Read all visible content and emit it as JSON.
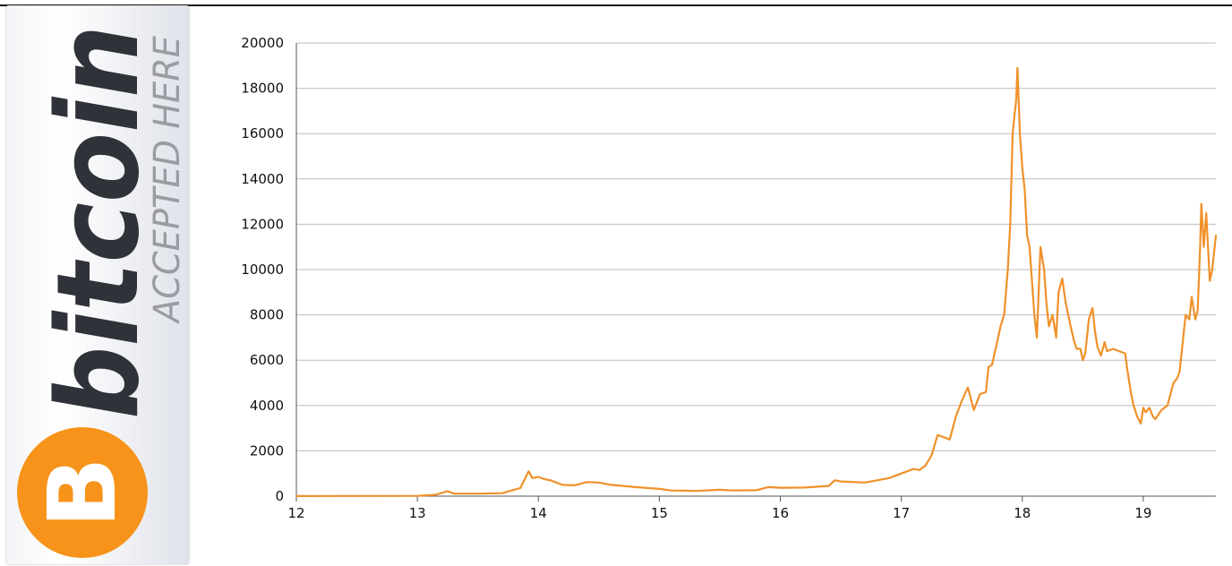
{
  "logo": {
    "wordmark": "bitcoin",
    "tagline": "ACCEPTED HERE",
    "symbol": "B",
    "icon": "bitcoin-coin-icon",
    "colors": {
      "orange": "#f7931a",
      "wordmark": "#2f3238",
      "tagline": "#9a9ca2"
    }
  },
  "chart_data": {
    "type": "line",
    "title": "",
    "xlabel": "",
    "ylabel": "",
    "xlim": [
      12,
      19.6
    ],
    "ylim": [
      0,
      20000
    ],
    "x_ticks": [
      "12",
      "13",
      "14",
      "15",
      "16",
      "17",
      "18",
      "19"
    ],
    "y_ticks": [
      "0",
      "2000",
      "4000",
      "6000",
      "8000",
      "10000",
      "12000",
      "14000",
      "16000",
      "18000",
      "20000"
    ],
    "grid": "horizontal",
    "legend": "none",
    "colors": {
      "line": "#f0912a",
      "grid": "#bdbdbd",
      "axis": "#555555"
    },
    "series": [
      {
        "x": [
          12.0,
          12.5,
          13.0,
          13.15,
          13.25,
          13.3,
          13.5,
          13.7,
          13.85,
          13.92,
          13.95,
          14.0,
          14.05,
          14.1,
          14.2,
          14.3,
          14.4,
          14.5,
          14.6,
          14.8,
          15.0,
          15.1,
          15.2,
          15.3,
          15.5,
          15.6,
          15.8,
          15.9,
          16.0,
          16.2,
          16.4,
          16.45,
          16.5,
          16.7,
          16.9,
          17.0,
          17.05,
          17.1,
          17.15,
          17.2,
          17.25,
          17.3,
          17.35,
          17.4,
          17.45,
          17.5,
          17.55,
          17.6,
          17.65,
          17.7,
          17.72,
          17.75,
          17.8,
          17.82,
          17.85,
          17.88,
          17.9,
          17.92,
          17.93,
          17.95,
          17.96,
          17.98,
          18.0,
          18.02,
          18.04,
          18.06,
          18.08,
          18.1,
          18.12,
          18.15,
          18.18,
          18.2,
          18.22,
          18.25,
          18.28,
          18.3,
          18.33,
          18.36,
          18.4,
          18.43,
          18.45,
          18.48,
          18.5,
          18.52,
          18.55,
          18.58,
          18.6,
          18.62,
          18.65,
          18.68,
          18.7,
          18.75,
          18.8,
          18.85,
          18.87,
          18.9,
          18.92,
          18.95,
          18.98,
          19.0,
          19.02,
          19.05,
          19.08,
          19.1,
          19.15,
          19.2,
          19.25,
          19.28,
          19.3,
          19.35,
          19.38,
          19.4,
          19.43,
          19.45,
          19.47,
          19.48,
          19.5,
          19.52,
          19.55,
          19.57,
          19.6
        ],
        "y": [
          5,
          6,
          13,
          60,
          220,
          110,
          110,
          130,
          350,
          1100,
          800,
          850,
          750,
          700,
          500,
          480,
          620,
          600,
          500,
          400,
          320,
          250,
          240,
          230,
          280,
          250,
          260,
          400,
          370,
          380,
          450,
          700,
          650,
          600,
          800,
          1000,
          1100,
          1200,
          1150,
          1350,
          1800,
          2700,
          2600,
          2500,
          3500,
          4200,
          4800,
          3800,
          4500,
          4600,
          5700,
          5800,
          7000,
          7500,
          8000,
          10000,
          12000,
          16000,
          16500,
          17500,
          18900,
          16000,
          14500,
          13500,
          11500,
          11000,
          9500,
          8000,
          7000,
          11000,
          10000,
          8500,
          7500,
          8000,
          7000,
          9000,
          9600,
          8500,
          7500,
          6800,
          6500,
          6500,
          6000,
          6300,
          7800,
          8300,
          7300,
          6600,
          6200,
          6800,
          6400,
          6500,
          6400,
          6300,
          5500,
          4500,
          4000,
          3500,
          3200,
          3900,
          3700,
          3900,
          3500,
          3400,
          3800,
          4000,
          5000,
          5200,
          5500,
          8000,
          7800,
          8800,
          7800,
          8200,
          11000,
          12900,
          11000,
          12500,
          9500,
          10000,
          11500
        ]
      }
    ]
  }
}
